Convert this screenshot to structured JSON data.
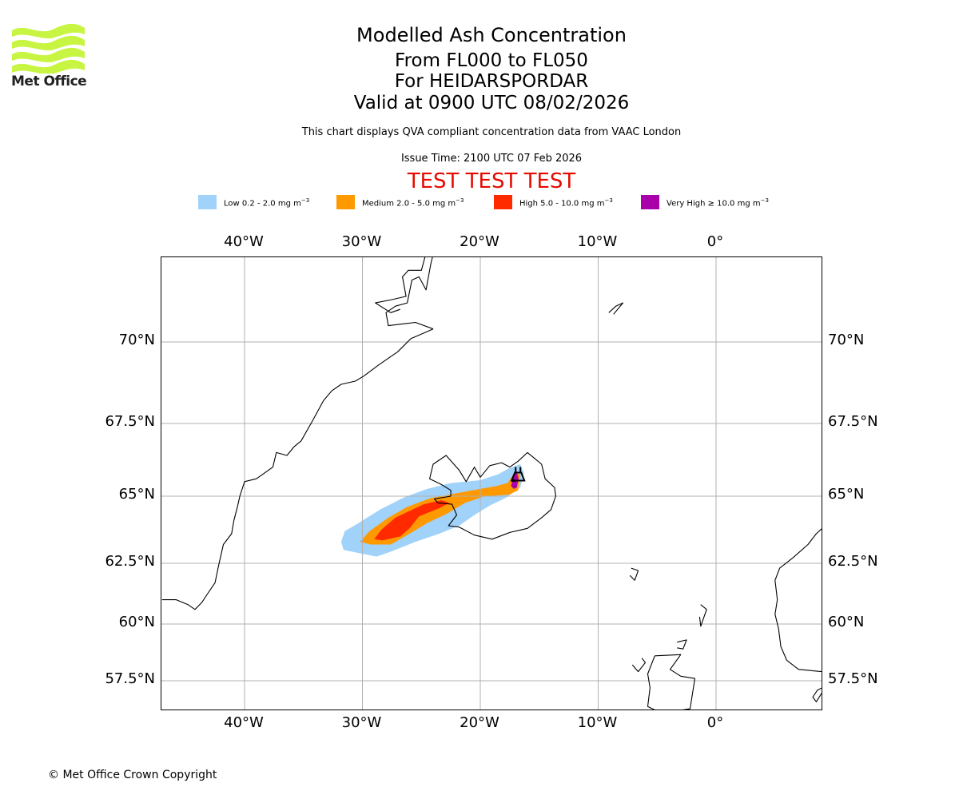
{
  "logo": {
    "name": "Met Office",
    "color": "#c8f542"
  },
  "header": {
    "title": "Modelled Ash Concentration",
    "flight_levels": "From FL000 to FL050",
    "volcano": "For HEIDARSPORDAR",
    "valid_time": "Valid at 0900 UTC 08/02/2026",
    "description": "This chart displays QVA compliant concentration data from VAAC London",
    "issue_time": "Issue Time: 2100 UTC 07 Feb 2026",
    "test_banner": "TEST TEST TEST",
    "test_banner_color": "#e50b00"
  },
  "legend": [
    {
      "label": "Low 0.2 - 2.0 mg m",
      "exp": "−3",
      "color": "#a0d2fa"
    },
    {
      "label": "Medium 2.0 - 5.0 mg m",
      "exp": "−3",
      "color": "#ff9900"
    },
    {
      "label": "High 5.0 - 10.0 mg m",
      "exp": "−3",
      "color": "#ff2a00"
    },
    {
      "label": "Very High  ≥  10.0 mg m",
      "exp": "−3",
      "color": "#aa00aa"
    }
  ],
  "chart_data": {
    "type": "map",
    "title": "Modelled Ash Concentration",
    "projection": "lat-lon",
    "lon_range": [
      -47,
      9
    ],
    "lat_range": [
      56.2,
      73
    ],
    "grid": true,
    "lon_ticks": [
      "40°W",
      "30°W",
      "20°W",
      "10°W",
      "0°"
    ],
    "lon_tick_values": [
      -40,
      -30,
      -20,
      -10,
      0
    ],
    "lat_ticks": [
      "70°N",
      "67.5°N",
      "65°N",
      "62.5°N",
      "60°N",
      "57.5°N"
    ],
    "lat_tick_values": [
      70,
      67.5,
      65,
      62.5,
      60,
      57.5
    ],
    "volcano_marker": {
      "name": "HEIDARSPORDAR",
      "symbol": "volcano",
      "lon": -16.8,
      "lat": 65.7
    },
    "ash_levels": [
      {
        "level": "Low",
        "range": "0.2 - 2.0 mg m−3",
        "color": "#a0d2fa",
        "polygon": [
          [
            -31.8,
            63.3
          ],
          [
            -31.5,
            63.7
          ],
          [
            -30.5,
            63.95
          ],
          [
            -28.5,
            64.5
          ],
          [
            -26.5,
            64.95
          ],
          [
            -24.5,
            65.25
          ],
          [
            -22.5,
            65.45
          ],
          [
            -20,
            65.55
          ],
          [
            -18.5,
            65.75
          ],
          [
            -17.6,
            65.95
          ],
          [
            -16.6,
            66.1
          ],
          [
            -16.3,
            65.8
          ],
          [
            -16.6,
            65.3
          ],
          [
            -17.8,
            64.95
          ],
          [
            -19.2,
            64.65
          ],
          [
            -20.5,
            64.3
          ],
          [
            -21.8,
            63.9
          ],
          [
            -23.5,
            63.6
          ],
          [
            -25.5,
            63.3
          ],
          [
            -27.5,
            62.95
          ],
          [
            -28.8,
            62.75
          ],
          [
            -30.5,
            62.9
          ],
          [
            -31.6,
            63.0
          ]
        ]
      },
      {
        "level": "Medium",
        "range": "2.0 - 5.0 mg m−3",
        "color": "#ff9900",
        "polygon": [
          [
            -30.2,
            63.3
          ],
          [
            -29.4,
            63.7
          ],
          [
            -27.8,
            64.2
          ],
          [
            -26.2,
            64.6
          ],
          [
            -24.3,
            64.92
          ],
          [
            -22,
            65.1
          ],
          [
            -20,
            65.25
          ],
          [
            -18.6,
            65.35
          ],
          [
            -17.7,
            65.45
          ],
          [
            -17.1,
            65.8
          ],
          [
            -16.6,
            65.75
          ],
          [
            -16.8,
            65.2
          ],
          [
            -17.6,
            65.05
          ],
          [
            -19.6,
            65.0
          ],
          [
            -21.3,
            64.75
          ],
          [
            -22.8,
            64.35
          ],
          [
            -24.5,
            64.0
          ],
          [
            -26.0,
            63.6
          ],
          [
            -27.6,
            63.2
          ],
          [
            -29.3,
            63.2
          ]
        ]
      },
      {
        "level": "High",
        "range": "5.0 - 10.0 mg m−3",
        "color": "#ff2a00",
        "polygon": [
          [
            -29.0,
            63.4
          ],
          [
            -28.4,
            63.75
          ],
          [
            -27.2,
            64.2
          ],
          [
            -26.0,
            64.45
          ],
          [
            -24.8,
            64.7
          ],
          [
            -23.3,
            64.85
          ],
          [
            -22.6,
            64.75
          ],
          [
            -23.5,
            64.55
          ],
          [
            -25.2,
            64.25
          ],
          [
            -26.0,
            63.8
          ],
          [
            -26.8,
            63.5
          ],
          [
            -28.3,
            63.35
          ]
        ]
      },
      {
        "level": "Very High",
        "range": "≥ 10.0 mg m−3",
        "color": "#aa00aa",
        "polygon": [
          [
            -17.4,
            65.35
          ],
          [
            -17.2,
            65.65
          ],
          [
            -16.95,
            65.9
          ],
          [
            -16.75,
            65.6
          ],
          [
            -16.9,
            65.3
          ],
          [
            -17.15,
            65.25
          ]
        ]
      }
    ]
  },
  "footer": {
    "copyright": "© Met Office Crown Copyright"
  }
}
